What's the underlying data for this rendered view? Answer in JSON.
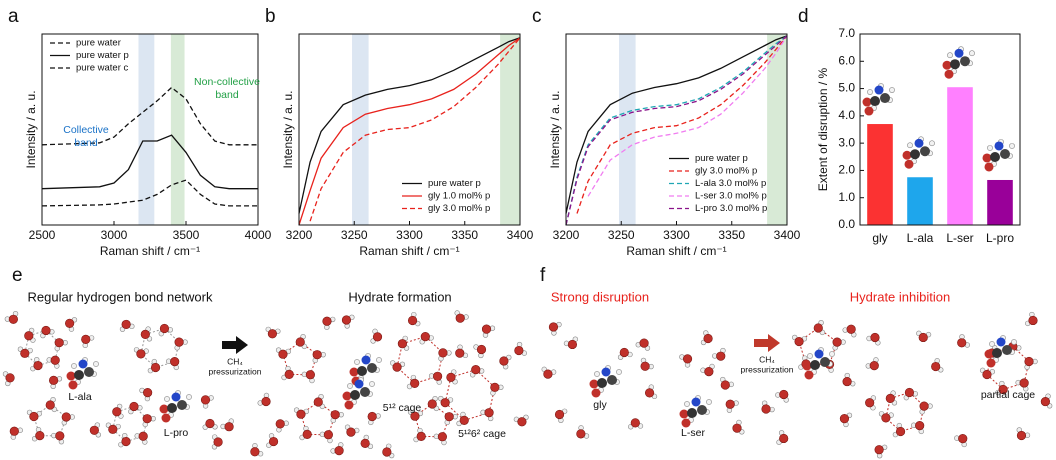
{
  "chart_data": [
    {
      "type": "line",
      "panel": "a",
      "x_label": "Raman shift / cm⁻¹",
      "y_label": "Intensity / a. u.",
      "x": [
        2500,
        2900,
        3000,
        3100,
        3200,
        3300,
        3400,
        3500,
        3600,
        3700,
        3800,
        4000
      ],
      "xlim": [
        2500,
        4000
      ],
      "xticks": [
        2500,
        3000,
        3500,
        4000
      ],
      "ylim": [
        0,
        10
      ],
      "legend": "upper left",
      "bands": [
        {
          "range": [
            3170,
            3280
          ],
          "color": "#dce6f2"
        },
        {
          "range": [
            3395,
            3490
          ],
          "color": "#d8ead6"
        }
      ],
      "annotations": [
        {
          "text": [
            "Collective",
            "band"
          ],
          "color": "#1a72c7"
        },
        {
          "text": [
            "Non-collective",
            "band"
          ],
          "color": "#22a046"
        }
      ],
      "series": [
        {
          "name": "pure water",
          "color": "#111111",
          "dash": true,
          "values": [
            4.2,
            4.3,
            4.6,
            5.3,
            5.9,
            6.5,
            7.2,
            6.6,
            5.3,
            4.4,
            4.2,
            4.2
          ]
        },
        {
          "name": "pure water p",
          "color": "#111111",
          "dash": false,
          "values": [
            1.9,
            2.0,
            2.2,
            2.9,
            4.4,
            4.4,
            4.7,
            3.8,
            2.6,
            2.0,
            1.9,
            1.9
          ]
        },
        {
          "name": "pure water c",
          "color": "#111111",
          "dash": true,
          "values": [
            1.0,
            1.05,
            1.1,
            1.2,
            1.3,
            1.6,
            2.1,
            2.35,
            1.6,
            1.1,
            1.0,
            1.0
          ]
        }
      ]
    },
    {
      "type": "line",
      "panel": "b",
      "x_label": "Raman shift / cm⁻¹",
      "y_label": "Intensity / a. u.",
      "x": [
        3200,
        3210,
        3220,
        3240,
        3260,
        3280,
        3300,
        3320,
        3340,
        3360,
        3380,
        3390,
        3400
      ],
      "xlim": [
        3200,
        3400
      ],
      "xticks": [
        3200,
        3250,
        3300,
        3350,
        3400
      ],
      "ylim": [
        0,
        10
      ],
      "legend": "lower right",
      "bands": [
        {
          "range": [
            3248,
            3263
          ],
          "color": "#dce6f2"
        },
        {
          "range": [
            3382,
            3400
          ],
          "color": "#d8ead6"
        }
      ],
      "series": [
        {
          "name": "pure water p",
          "color": "#111111",
          "dash": false,
          "values": [
            0.6,
            3.3,
            4.9,
            6.3,
            6.8,
            7.1,
            7.3,
            7.6,
            8.1,
            8.7,
            9.3,
            9.6,
            9.8
          ]
        },
        {
          "name": "gly 1.0 mol% p",
          "color": "#e8221c",
          "dash": false,
          "values": [
            0.0,
            1.8,
            3.5,
            5.1,
            5.8,
            6.1,
            6.3,
            6.6,
            7.1,
            7.9,
            8.9,
            9.4,
            9.8
          ]
        },
        {
          "name": "gly 3.0 mol% p",
          "color": "#e8221c",
          "dash": true,
          "values": [
            null,
            0.2,
            1.9,
            3.8,
            4.7,
            5.0,
            5.1,
            5.5,
            6.2,
            7.2,
            8.4,
            9.1,
            9.8
          ]
        }
      ]
    },
    {
      "type": "line",
      "panel": "c",
      "x_label": "Raman shift / cm⁻¹",
      "y_label": "Intensity / a. u.",
      "x": [
        3200,
        3210,
        3220,
        3240,
        3260,
        3280,
        3300,
        3320,
        3340,
        3360,
        3380,
        3390,
        3400
      ],
      "xlim": [
        3200,
        3400
      ],
      "xticks": [
        3200,
        3250,
        3300,
        3350,
        3400
      ],
      "ylim": [
        0,
        10
      ],
      "legend": "lower right",
      "bands": [
        {
          "range": [
            3248,
            3263
          ],
          "color": "#dce6f2"
        },
        {
          "range": [
            3382,
            3400
          ],
          "color": "#d8ead6"
        }
      ],
      "series": [
        {
          "name": "pure water p",
          "color": "#111111",
          "dash": false,
          "values": [
            0.6,
            3.3,
            4.9,
            6.3,
            6.9,
            7.2,
            7.4,
            7.7,
            8.2,
            8.8,
            9.4,
            9.7,
            9.9
          ]
        },
        {
          "name": "gly 3.0 mol% p",
          "color": "#e8221c",
          "dash": true,
          "values": [
            null,
            0.6,
            2.3,
            4.2,
            4.8,
            5.1,
            5.2,
            5.6,
            6.3,
            7.3,
            8.5,
            9.2,
            9.9
          ]
        },
        {
          "name": "L-ala 3.0 mol% p",
          "color": "#1fa6b4",
          "dash": true,
          "values": [
            0.0,
            2.5,
            4.2,
            5.6,
            6.0,
            6.2,
            6.3,
            6.6,
            7.2,
            8.0,
            9.0,
            9.5,
            9.9
          ]
        },
        {
          "name": "L-ser 3.0 mol% p",
          "color": "#f07cf0",
          "dash": true,
          "values": [
            null,
            null,
            1.5,
            3.4,
            4.2,
            4.6,
            4.8,
            5.1,
            5.8,
            6.9,
            8.2,
            9.0,
            9.9
          ]
        },
        {
          "name": "L-pro 3.0 mol% p",
          "color": "#8a138a",
          "dash": true,
          "values": [
            0.0,
            2.4,
            4.1,
            5.5,
            5.9,
            6.1,
            6.2,
            6.5,
            7.1,
            7.9,
            8.9,
            9.4,
            9.9
          ]
        }
      ]
    },
    {
      "type": "bar",
      "panel": "d",
      "y_label": "Extent of disruption / %",
      "categories": [
        "gly",
        "L-ala",
        "L-ser",
        "L-pro"
      ],
      "values": [
        3.7,
        1.75,
        5.05,
        1.65
      ],
      "colors": [
        "#fb3232",
        "#1ea6ec",
        "#ff80ff",
        "#990099"
      ],
      "ylim": [
        0,
        7
      ],
      "yticks": [
        {
          "value": 0,
          "label": "0.0"
        },
        {
          "value": 1,
          "label": "1.0"
        },
        {
          "value": 2,
          "label": "2.0"
        },
        {
          "value": 3,
          "label": "3.0"
        },
        {
          "value": 4,
          "label": "4.0"
        },
        {
          "value": 5,
          "label": "5.0"
        },
        {
          "value": 6,
          "label": "6.0"
        },
        {
          "value": 7,
          "label": "7.0"
        }
      ]
    }
  ],
  "diagrams": [
    {
      "panel": "e",
      "title_color": "#111111",
      "left_title": "Regular hydrogen bond network",
      "right_title": "Hydrate formation",
      "labels": [
        "L-ala",
        "L-pro",
        "5¹² cage",
        "5¹²6² cage"
      ],
      "arrow_color": "#111111",
      "arrow": [
        "CH₄",
        "pressurization"
      ]
    },
    {
      "panel": "f",
      "title_color": "#e8221c",
      "left_title": "Strong disruption",
      "right_title": "Hydrate inhibition",
      "labels": [
        "gly",
        "L-ser",
        "partial cage"
      ],
      "arrow_color": "#c0392b",
      "arrow": [
        "CH₄",
        "pressurization"
      ]
    }
  ]
}
